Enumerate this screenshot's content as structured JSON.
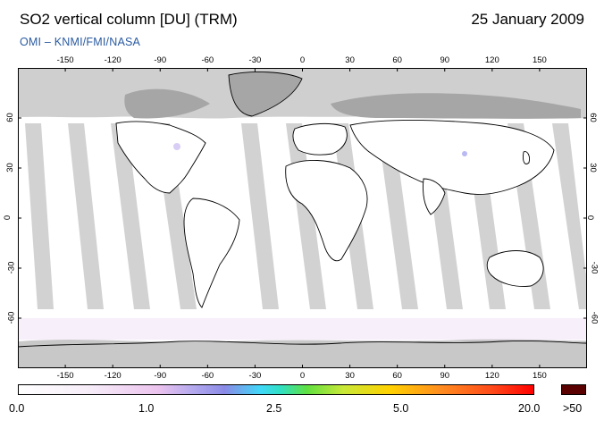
{
  "header": {
    "title": "SO2 vertical column [DU] (TRM)",
    "date": "25 January 2009",
    "subtitle": "OMI  –  KNMI/FMI/NASA"
  },
  "map": {
    "lon_ticks": [
      "-150",
      "-120",
      "-90",
      "-60",
      "-30",
      "0",
      "30",
      "60",
      "90",
      "120",
      "150"
    ],
    "lat_ticks": [
      "60",
      "30",
      "0",
      "-30",
      "-60"
    ],
    "colors": {
      "no_data": "#c8c8c8",
      "land_no_data": "#a0a0a0",
      "coastline": "#000000",
      "background": "#ffffff"
    }
  },
  "colorbar": {
    "labels": [
      "0.0",
      "1.0",
      "2.5",
      "5.0",
      "20.0"
    ],
    "overflow_label": ">50",
    "overflow_color": "#5a0000"
  }
}
